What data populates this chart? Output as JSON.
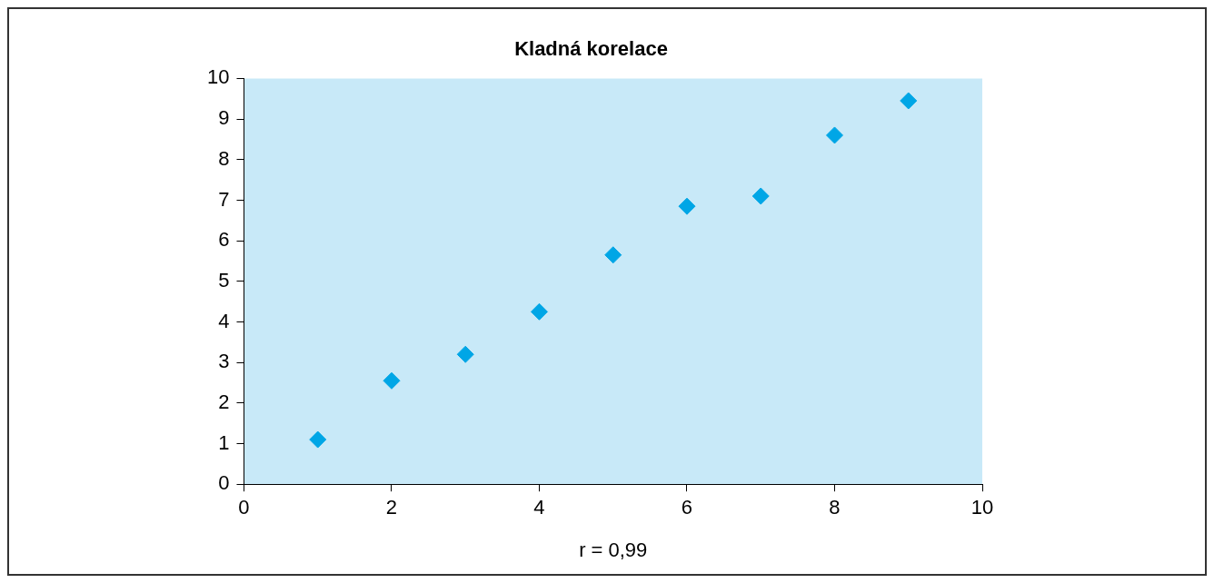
{
  "chart_data": {
    "type": "scatter",
    "title": "Kladná korelace",
    "xlabel": "r = 0,99",
    "x": [
      1,
      2,
      3,
      4,
      5,
      6,
      7,
      8,
      9
    ],
    "series": [
      {
        "color": "#00a6e6",
        "values": [
          1.1,
          2.55,
          3.2,
          4.25,
          5.65,
          6.85,
          7.1,
          8.6,
          9.45
        ]
      }
    ],
    "marker": "diamond",
    "xlim": [
      0,
      10
    ],
    "xticks": [
      0,
      2,
      4,
      6,
      8,
      10
    ],
    "ylim": [
      0,
      10
    ],
    "yticks": [
      0,
      1,
      2,
      3,
      4,
      5,
      6,
      7,
      8,
      9,
      10
    ],
    "legend": false
  }
}
